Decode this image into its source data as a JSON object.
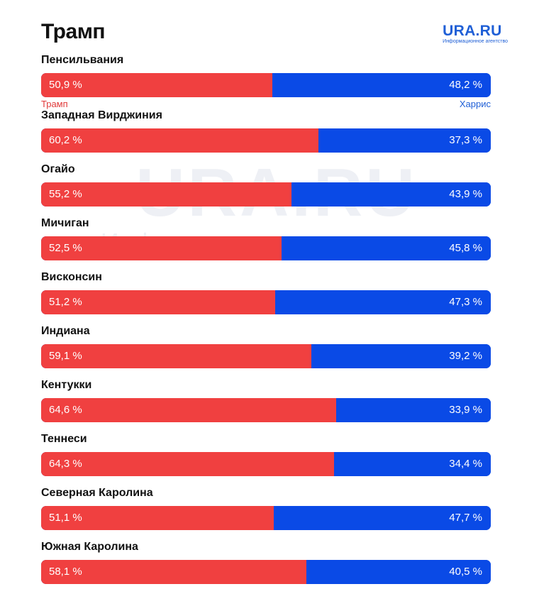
{
  "chart_data": {
    "type": "bar",
    "orientation": "horizontal-stacked",
    "title": "Трамп",
    "categories": [
      "Пенсильвания",
      "Западная Вирджиния",
      "Огайо",
      "Мичиган",
      "Висконсин",
      "Индиана",
      "Кентукки",
      "Теннеси",
      "Северная Каролина",
      "Южная Каролина"
    ],
    "series": [
      {
        "name": "Трамп",
        "color": "#f04040",
        "values": [
          50.9,
          60.2,
          55.2,
          52.5,
          51.2,
          59.1,
          64.6,
          64.3,
          51.1,
          58.1
        ]
      },
      {
        "name": "Харрис",
        "color": "#0a4ae6",
        "values": [
          48.2,
          37.3,
          43.9,
          45.8,
          47.3,
          39.2,
          33.9,
          34.4,
          47.7,
          40.5
        ]
      }
    ],
    "value_labels_left": [
      "50,9 %",
      "60,2 %",
      "55,2 %",
      "52,5 %",
      "51,2 %",
      "59,1 %",
      "64,6 %",
      "64,3 %",
      "51,1 %",
      "58,1 %"
    ],
    "value_labels_right": [
      "48,2 %",
      "37,3 %",
      "43,9 %",
      "45,8 %",
      "47,3 %",
      "39,2 %",
      "33,9 %",
      "34,4 %",
      "47,7 %",
      "40,5 %"
    ],
    "legend": {
      "left": "Трамп",
      "right": "Харрис",
      "placement": "below first bar"
    }
  },
  "header": {
    "title": "Трамп"
  },
  "logo": {
    "name": "URA.RU",
    "tagline": "Информационное агентство"
  },
  "watermark": {
    "name": "URA.RU",
    "tagline": "Информационное агентство"
  }
}
